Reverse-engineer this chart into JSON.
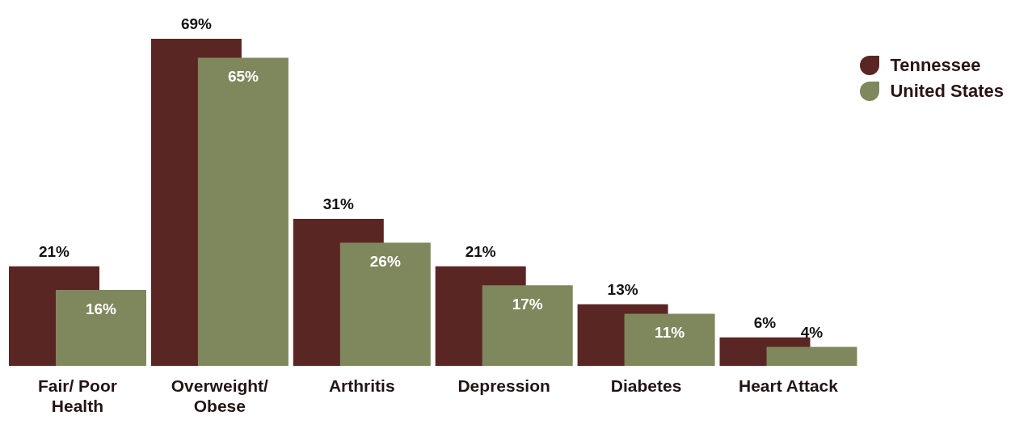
{
  "chart_data": {
    "type": "bar",
    "categories": [
      "Fair/ Poor Health",
      "Overweight/ Obese",
      "Arthritis",
      "Depression",
      "Diabetes",
      "Heart Attack"
    ],
    "series": [
      {
        "name": "Tennessee",
        "color": "#5a2624",
        "values": [
          21,
          69,
          31,
          21,
          13,
          6
        ],
        "value_labels": [
          "21%",
          "69%",
          "31%",
          "21%",
          "13%",
          "6%"
        ]
      },
      {
        "name": "United States",
        "color": "#7f875c",
        "values": [
          16,
          65,
          26,
          17,
          11,
          4
        ],
        "value_labels": [
          "16%",
          "65%",
          "26%",
          "17%",
          "11%",
          "4%"
        ]
      }
    ],
    "legend": "top right"
  }
}
